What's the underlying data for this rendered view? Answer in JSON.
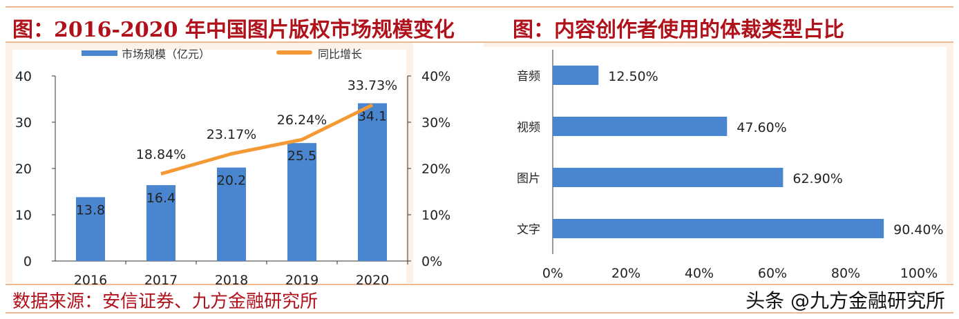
{
  "left_title": "图：2016-2020 年中国图片版权市场规模变化",
  "right_title": "图：内容创作者使用的体裁类型占比",
  "source": "数据来源：安信证券、九方金融研究所",
  "watermark": "头条 @九方金融研究所",
  "chart_data": [
    {
      "type": "bar+line",
      "categories": [
        "2016",
        "2017",
        "2018",
        "2019",
        "2020"
      ],
      "series": [
        {
          "name": "市场规模（亿元）",
          "type": "bar",
          "values": [
            13.8,
            16.4,
            20.2,
            25.5,
            34.1
          ],
          "labels": [
            "13.8",
            "16.4",
            "20.2",
            "25.5",
            "34.1"
          ],
          "color": "#4a86cf"
        },
        {
          "name": "同比增长",
          "type": "line",
          "axis": "right",
          "values": [
            null,
            18.84,
            23.17,
            26.24,
            33.73
          ],
          "labels": [
            "",
            "18.84%",
            "23.17%",
            "26.24%",
            "33.73%"
          ],
          "color": "#f39a35"
        }
      ],
      "ylim": [
        0,
        40
      ],
      "yticks": [
        "0",
        "10",
        "20",
        "30",
        "40"
      ],
      "y2lim": [
        0,
        40
      ],
      "y2ticks": [
        "0%",
        "10%",
        "20%",
        "30%",
        "40%"
      ],
      "legend": "top"
    },
    {
      "type": "hbar",
      "categories": [
        "音频",
        "视频",
        "图片",
        "文字"
      ],
      "values": [
        12.5,
        47.6,
        62.9,
        90.4
      ],
      "labels": [
        "12.50%",
        "47.60%",
        "62.90%",
        "90.40%"
      ],
      "xlim": [
        0,
        100
      ],
      "xticks": [
        "0%",
        "20%",
        "40%",
        "60%",
        "80%",
        "100%"
      ],
      "color": "#4a86cf"
    }
  ]
}
